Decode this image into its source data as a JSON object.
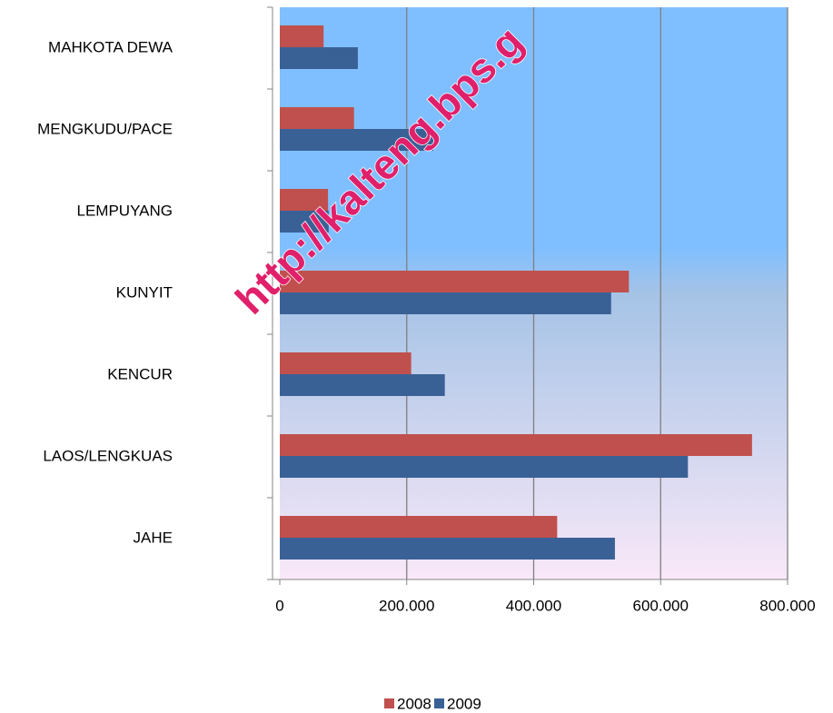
{
  "chart_data": {
    "type": "hbar",
    "categories": [
      "MAHKOTA DEWA",
      "MENGKUDU/PACE",
      "LEMPUYANG",
      "KUNYIT",
      "KENCUR",
      "LAOS/LENGKUAS",
      "JAHE"
    ],
    "series": [
      {
        "name": "2008",
        "color": "#c0504d",
        "values": [
          69000,
          117000,
          76000,
          550000,
          207000,
          744000,
          437000
        ]
      },
      {
        "name": "2009",
        "color": "#3a6196",
        "values": [
          123000,
          242000,
          77000,
          522000,
          260000,
          643000,
          528000
        ]
      }
    ],
    "xlim": [
      0,
      800000
    ],
    "xticks": [
      0,
      {
        "value": 200000,
        "label": "200.000"
      },
      {
        "value": 400000,
        "label": "400.000"
      },
      {
        "value": 600000,
        "label": "600.000"
      },
      {
        "value": 800000,
        "label": "800.000"
      }
    ],
    "grid": true,
    "legend": "bottom",
    "watermark": "http://kalteng.bps.g"
  }
}
